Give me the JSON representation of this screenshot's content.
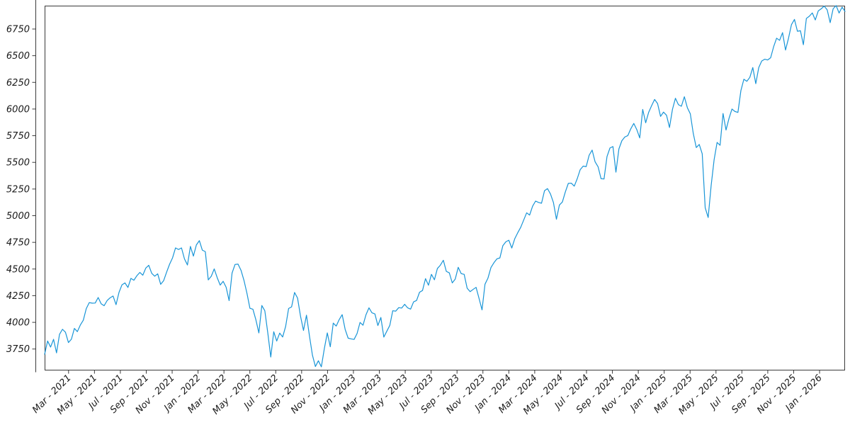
{
  "figure": {
    "background_color": "#ffffff",
    "line_color": "#1995d7",
    "axis_color": "#3a3a3a",
    "tick_label_color": "#1a1a1a"
  },
  "chart_data": {
    "type": "line",
    "title": "",
    "xlabel": "",
    "ylabel": "",
    "grid": false,
    "legend": null,
    "y_ticks": [
      3750,
      4000,
      4250,
      4500,
      4750,
      5000,
      5250,
      5500,
      5750,
      6000,
      6250,
      6500,
      6750
    ],
    "ylim": [
      3549,
      6969
    ],
    "x_tick_labels": [
      "Mar - 2021",
      "May - 2021",
      "Jul - 2021",
      "Sep - 2021",
      "Nov - 2021",
      "Jan - 2022",
      "Mar - 2022",
      "May - 2022",
      "Jul - 2022",
      "Sep - 2022",
      "Nov - 2022",
      "Jan - 2023",
      "Mar - 2023",
      "May - 2023",
      "Jul - 2023",
      "Sep - 2023",
      "Nov - 2023",
      "Jan - 2024",
      "Mar - 2024",
      "May - 2024",
      "Jul - 2024",
      "Sep - 2024",
      "Nov - 2024",
      "Jan - 2025",
      "Mar - 2025",
      "May - 2025",
      "Jul - 2025",
      "Sep - 2025",
      "Nov - 2025",
      "Jan - 2026"
    ],
    "x_range": "early Jan 2021 (left edge) to late Feb 2026 (right edge)",
    "series": [
      {
        "name": "",
        "sampling": "weekly values estimated from the daily trace",
        "values": [
          3701,
          3825,
          3768,
          3841,
          3714,
          3887,
          3935,
          3907,
          3811,
          3842,
          3943,
          3913,
          3975,
          4020,
          4129,
          4185,
          4180,
          4181,
          4233,
          4174,
          4156,
          4204,
          4230,
          4247,
          4166,
          4281,
          4352,
          4370,
          4327,
          4412,
          4395,
          4437,
          4468,
          4442,
          4509,
          4535,
          4459,
          4433,
          4455,
          4357,
          4391,
          4471,
          4545,
          4605,
          4698,
          4683,
          4698,
          4595,
          4538,
          4712,
          4621,
          4726,
          4766,
          4677,
          4663,
          4398,
          4432,
          4501,
          4419,
          4349,
          4385,
          4329,
          4204,
          4463,
          4543,
          4546,
          4488,
          4393,
          4272,
          4132,
          4123,
          4024,
          3901,
          4158,
          4109,
          3901,
          3675,
          3912,
          3825,
          3899,
          3863,
          3962,
          4130,
          4145,
          4280,
          4228,
          4058,
          3924,
          4067,
          3873,
          3693,
          3586,
          3640,
          3583,
          3753,
          3901,
          3771,
          3993,
          3965,
          4026,
          4072,
          3934,
          3852,
          3845,
          3840,
          3895,
          3999,
          3973,
          4071,
          4136,
          4090,
          4079,
          3970,
          4046,
          3862,
          3917,
          3971,
          4109,
          4105,
          4138,
          4134,
          4169,
          4136,
          4124,
          4192,
          4205,
          4282,
          4299,
          4410,
          4348,
          4450,
          4399,
          4505,
          4536,
          4582,
          4478,
          4464,
          4370,
          4406,
          4516,
          4457,
          4450,
          4320,
          4288,
          4309,
          4328,
          4224,
          4117,
          4358,
          4415,
          4514,
          4559,
          4595,
          4604,
          4719,
          4755,
          4770,
          4697,
          4784,
          4840,
          4891,
          4959,
          5027,
          5006,
          5089,
          5137,
          5124,
          5117,
          5234,
          5254,
          5204,
          5123,
          4967,
          5100,
          5128,
          5223,
          5303,
          5305,
          5277,
          5347,
          5432,
          5465,
          5460,
          5567,
          5615,
          5505,
          5459,
          5347,
          5344,
          5554,
          5635,
          5648,
          5408,
          5626,
          5703,
          5738,
          5751,
          5815,
          5865,
          5808,
          5729,
          5996,
          5871,
          5969,
          6032,
          6090,
          6051,
          5931,
          5971,
          5942,
          5827,
          5997,
          6101,
          6041,
          6026,
          6115,
          6013,
          5955,
          5770,
          5639,
          5668,
          5581,
          5074,
          4983,
          5283,
          5525,
          5687,
          5660,
          5958,
          5803,
          5912,
          6000,
          5977,
          5968,
          6173,
          6279,
          6260,
          6297,
          6389,
          6238,
          6389,
          6450,
          6467,
          6460,
          6481,
          6584,
          6664,
          6644,
          6716,
          6553,
          6664,
          6792,
          6840,
          6729,
          6734,
          6603,
          6849,
          6870,
          6901,
          6835,
          6920,
          6940,
          6965,
          6930,
          6810,
          6940,
          6970,
          6900,
          6955,
          6915
        ]
      }
    ]
  }
}
